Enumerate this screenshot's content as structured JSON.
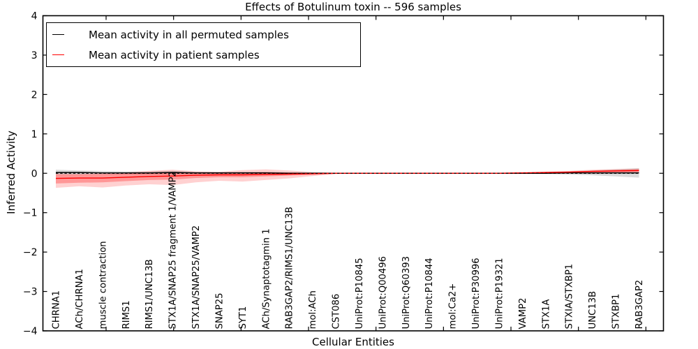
{
  "chart_data": {
    "type": "line",
    "title": "Effects of Botulinum toxin -- 596 samples",
    "xlabel": "Cellular Entities",
    "ylabel": "Inferred Activity",
    "ylim": [
      -4,
      4
    ],
    "grid": false,
    "legend_position": "upper left",
    "yticks": [
      {
        "v": 4,
        "label": "4"
      },
      {
        "v": 3,
        "label": "3"
      },
      {
        "v": 2,
        "label": "2"
      },
      {
        "v": 1,
        "label": "1"
      },
      {
        "v": 0,
        "label": "0"
      },
      {
        "v": -1,
        "label": "−1"
      },
      {
        "v": -2,
        "label": "−2"
      },
      {
        "v": -3,
        "label": "−3"
      },
      {
        "v": -4,
        "label": "−4"
      }
    ],
    "categories": [
      "CHRNA1",
      "ACh/CHRNA1",
      "muscle contraction",
      "RIMS1",
      "RIMS1/UNC13B",
      "STX1A/SNAP25 fragment 1/VAMP2",
      "STX1A/SNAP25/VAMP2",
      "SNAP25",
      "SYT1",
      "ACh/Synaptotagmin 1",
      "RAB3GAP2/RIMS1/UNC13B",
      "mol:ACh",
      "CST086",
      "UniProt:P10845",
      "UniProt:Q00496",
      "UniProt:Q60393",
      "UniProt:P10844",
      "mol:Ca2+",
      "UniProt:P30996",
      "UniProt:P19321",
      "VAMP2",
      "STX1A",
      "STXIA/STXBP1",
      "UNC13B",
      "STXBP1",
      "RAB3GAP2"
    ],
    "series": [
      {
        "name": "Mean activity in all permuted samples",
        "color": "#000000",
        "style": "solid",
        "values": [
          0.02,
          0.02,
          0.01,
          0.01,
          0.01,
          0.02,
          0.01,
          0.01,
          0.01,
          0.01,
          0,
          0,
          0,
          0,
          0,
          0,
          0,
          0,
          0,
          0,
          0,
          0,
          0.01,
          0.01,
          0.01,
          0.01
        ]
      },
      {
        "name": "Mean activity in patient samples",
        "color": "#ff0000",
        "style": "solid",
        "values": [
          -0.13,
          -0.12,
          -0.12,
          -0.1,
          -0.08,
          -0.07,
          -0.05,
          -0.04,
          -0.04,
          -0.03,
          -0.02,
          -0.01,
          0,
          0,
          0,
          0,
          0,
          0,
          0,
          0,
          0.01,
          0.02,
          0.03,
          0.05,
          0.06,
          0.07
        ]
      },
      {
        "name": "zero baseline",
        "color": "#000000",
        "style": "dashed",
        "values": [
          0,
          0,
          0,
          0,
          0,
          0,
          0,
          0,
          0,
          0,
          0,
          0,
          0,
          0,
          0,
          0,
          0,
          0,
          0,
          0,
          0,
          0,
          0,
          0,
          0,
          0
        ]
      }
    ],
    "bands": [
      {
        "name": "permuted samples spread",
        "color": "#000000",
        "opacity": 0.14,
        "hi": [
          0.09,
          0.07,
          0.06,
          0.05,
          0.05,
          0.06,
          0.04,
          0.03,
          0.04,
          0.03,
          0.02,
          0.02,
          0.01,
          0.01,
          0.01,
          0.01,
          0.01,
          0.01,
          0.01,
          0.01,
          0.02,
          0.03,
          0.05,
          0.07,
          0.1,
          0.13
        ],
        "lo": [
          -0.04,
          -0.04,
          -0.03,
          -0.03,
          -0.03,
          -0.03,
          -0.02,
          -0.02,
          -0.02,
          -0.02,
          -0.01,
          -0.01,
          -0.01,
          -0.01,
          -0.01,
          -0.01,
          -0.01,
          -0.01,
          -0.01,
          -0.01,
          -0.01,
          -0.02,
          -0.03,
          -0.05,
          -0.08,
          -0.11
        ]
      },
      {
        "name": "patient samples spread outer",
        "color": "#ff0000",
        "opacity": 0.18,
        "hi": [
          0.0,
          -0.01,
          0.0,
          0.02,
          0.06,
          0.09,
          0.05,
          0.04,
          0.08,
          0.1,
          0.07,
          0.03,
          0.01,
          0.01,
          0.01,
          0.01,
          0.01,
          0.01,
          0.01,
          0.01,
          0.02,
          0.04,
          0.06,
          0.09,
          0.11,
          0.12
        ],
        "lo": [
          -0.37,
          -0.33,
          -0.36,
          -0.31,
          -0.28,
          -0.3,
          -0.23,
          -0.19,
          -0.21,
          -0.17,
          -0.13,
          -0.07,
          -0.02,
          -0.01,
          -0.01,
          -0.01,
          -0.01,
          -0.01,
          -0.01,
          -0.01,
          0.0,
          0.0,
          0.0,
          0.01,
          0.02,
          0.02
        ]
      },
      {
        "name": "patient samples spread inner",
        "color": "#ff0000",
        "opacity": 0.28,
        "hi": [
          -0.03,
          -0.03,
          -0.02,
          -0.01,
          0.01,
          0.02,
          0.01,
          0.01,
          0.02,
          0.03,
          0.02,
          0.01,
          0.0,
          0.0,
          0.0,
          0.0,
          0.0,
          0.0,
          0.0,
          0.0,
          0.01,
          0.02,
          0.04,
          0.06,
          0.08,
          0.1
        ],
        "lo": [
          -0.26,
          -0.24,
          -0.23,
          -0.2,
          -0.17,
          -0.16,
          -0.12,
          -0.1,
          -0.1,
          -0.08,
          -0.06,
          -0.04,
          -0.01,
          -0.01,
          -0.01,
          -0.01,
          -0.01,
          -0.01,
          -0.01,
          -0.01,
          0.0,
          0.0,
          0.01,
          0.02,
          0.03,
          0.04
        ]
      }
    ],
    "legend": [
      {
        "label": "Mean activity in all permuted samples",
        "color": "#000000"
      },
      {
        "label": "Mean activity in patient samples",
        "color": "#ff0000"
      }
    ]
  }
}
